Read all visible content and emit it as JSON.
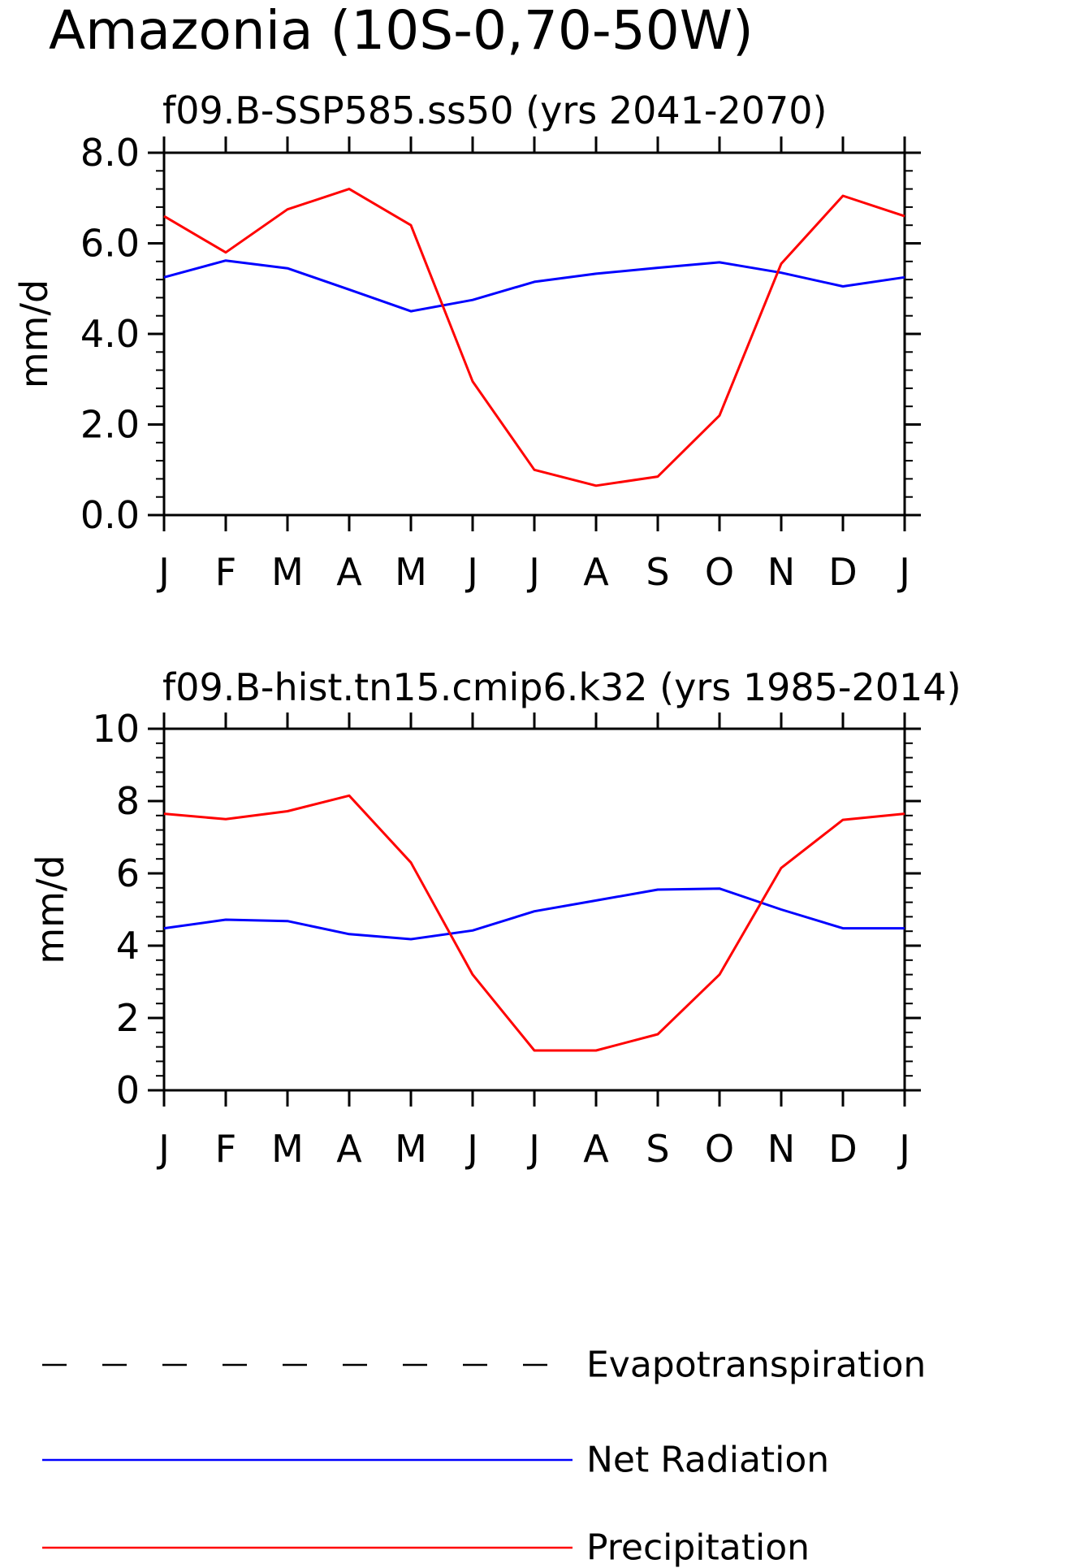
{
  "figure_title": "Amazonia (10S-0,70-50W)",
  "legend": [
    {
      "label": "Evapotranspiration",
      "color": "#000000",
      "style": "dashed"
    },
    {
      "label": "Net Radiation",
      "color": "#0000ff",
      "style": "solid"
    },
    {
      "label": "Precipitation",
      "color": "#ff0000",
      "style": "solid"
    }
  ],
  "chart_data": [
    {
      "type": "line",
      "title": "f09.B-SSP585.ss50 (yrs 2041-2070)",
      "ylabel": "mm/d",
      "xlabel": "",
      "categories": [
        "J",
        "F",
        "M",
        "A",
        "M",
        "J",
        "J",
        "A",
        "S",
        "O",
        "N",
        "D",
        "J"
      ],
      "ylim": [
        0,
        8
      ],
      "yticks": [
        0,
        2,
        4,
        6,
        8
      ],
      "ytick_labels": [
        "0.0",
        "2.0",
        "4.0",
        "6.0",
        "8.0"
      ],
      "yminor_step": 0.4,
      "grid": false,
      "series": [
        {
          "name": "Net Radiation",
          "color": "#0000ff",
          "values": [
            5.25,
            5.62,
            5.45,
            4.98,
            4.5,
            4.75,
            5.15,
            5.33,
            5.46,
            5.58,
            5.35,
            5.05,
            5.25
          ]
        },
        {
          "name": "Precipitation",
          "color": "#ff0000",
          "values": [
            6.6,
            5.8,
            6.75,
            7.2,
            6.4,
            2.95,
            1.0,
            0.65,
            0.85,
            2.2,
            5.55,
            7.05,
            6.6
          ]
        }
      ]
    },
    {
      "type": "line",
      "title": "f09.B-hist.tn15.cmip6.k32 (yrs 1985-2014)",
      "ylabel": "mm/d",
      "xlabel": "",
      "categories": [
        "J",
        "F",
        "M",
        "A",
        "M",
        "J",
        "J",
        "A",
        "S",
        "O",
        "N",
        "D",
        "J"
      ],
      "ylim": [
        0,
        10
      ],
      "yticks": [
        0,
        2,
        4,
        6,
        8,
        10
      ],
      "ytick_labels": [
        "0",
        "2",
        "4",
        "6",
        "8",
        "10"
      ],
      "yminor_step": 0.4,
      "grid": false,
      "series": [
        {
          "name": "Net Radiation",
          "color": "#0000ff",
          "values": [
            4.48,
            4.72,
            4.68,
            4.32,
            4.18,
            4.42,
            4.95,
            5.25,
            5.55,
            5.58,
            5.0,
            4.48,
            4.48
          ]
        },
        {
          "name": "Precipitation",
          "color": "#ff0000",
          "values": [
            7.65,
            7.5,
            7.72,
            8.15,
            6.3,
            3.2,
            1.1,
            1.1,
            1.55,
            3.2,
            6.15,
            7.48,
            7.65
          ]
        }
      ]
    }
  ]
}
